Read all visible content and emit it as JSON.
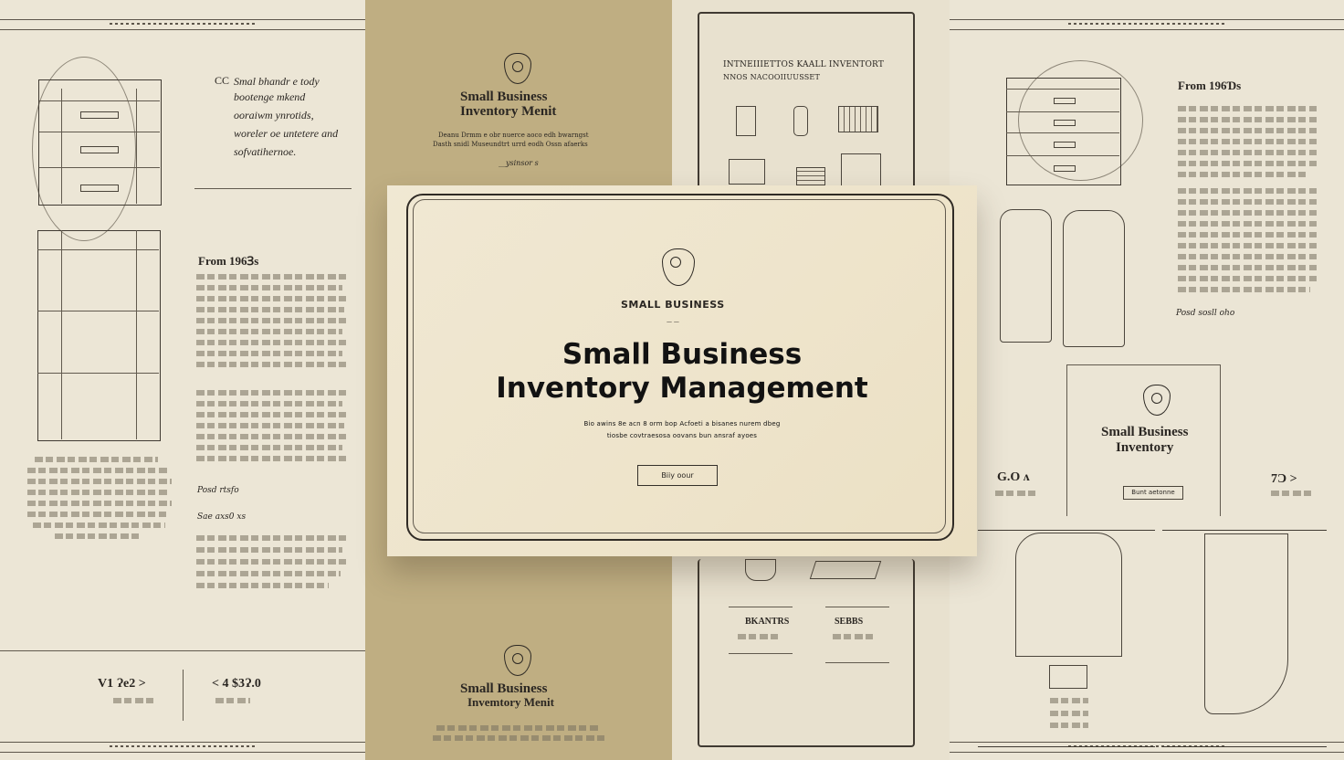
{
  "left_panel": {
    "top_note": "CC",
    "description_lines": [
      "Smal bhandr e tody",
      "bootenge mkend",
      "ooraiwm ynrotids,",
      "woreler oe untetere and",
      "sofvatihernoe."
    ],
    "section_title": "From 196Ɜs",
    "section_title_2": "Posd rtsfo",
    "section_title_3": "Sae axs0 xs",
    "bottom_left_value": "V1 Ɂe2 >",
    "bottom_right_value": "< 4 $3Ɂ.0"
  },
  "left_mid_panel": {
    "brand_title_lines": [
      "Small Business",
      "Inventory Menit"
    ],
    "subtitle_lines": [
      "Deanu Drmm e obr nuerce aoco edh bwarngst",
      "Dasth snidl Museundtrt urrd eodh Ossn afaerks"
    ],
    "signature": "__ysinsor s",
    "footer_brand_lines": [
      "Small Business",
      "Invemtory Menit"
    ]
  },
  "center_right_panel": {
    "header_lines": [
      "INTNEIIIETTOS KAALL INVENTORT",
      "NNOS NACOOIIUUSSET"
    ],
    "caption_left": "BKANTRS",
    "caption_right": "SEBBS"
  },
  "right_panel": {
    "section_title": "From 196Ɗs",
    "note": "Posd sosll oho",
    "brand_title_lines": [
      "Small Business",
      "Inventory"
    ],
    "button_text": "Bunt aetonne",
    "left_metric": "G.O ʌ",
    "right_metric": "7Ɔ >"
  },
  "hero_card": {
    "brand_label": "SMALL BUSINESS",
    "brand_sub": "— —",
    "headline_lines": [
      "Small Business",
      "Inventory Management"
    ],
    "subtext_lines": [
      "Bio awins 8e acn 8 orm bop Acfoeti a bisanes nurem dbeg",
      "tiosbe covtraesosa oovans bun ansraf ayoes"
    ],
    "button_label": "Biiy oour"
  },
  "colors": {
    "page_background": "#e9e2d1",
    "accent_panel": "#bfae82",
    "card_background": "#efe6cf",
    "ink": "#2a2622"
  },
  "icons": {
    "seal": "seal-icon"
  }
}
